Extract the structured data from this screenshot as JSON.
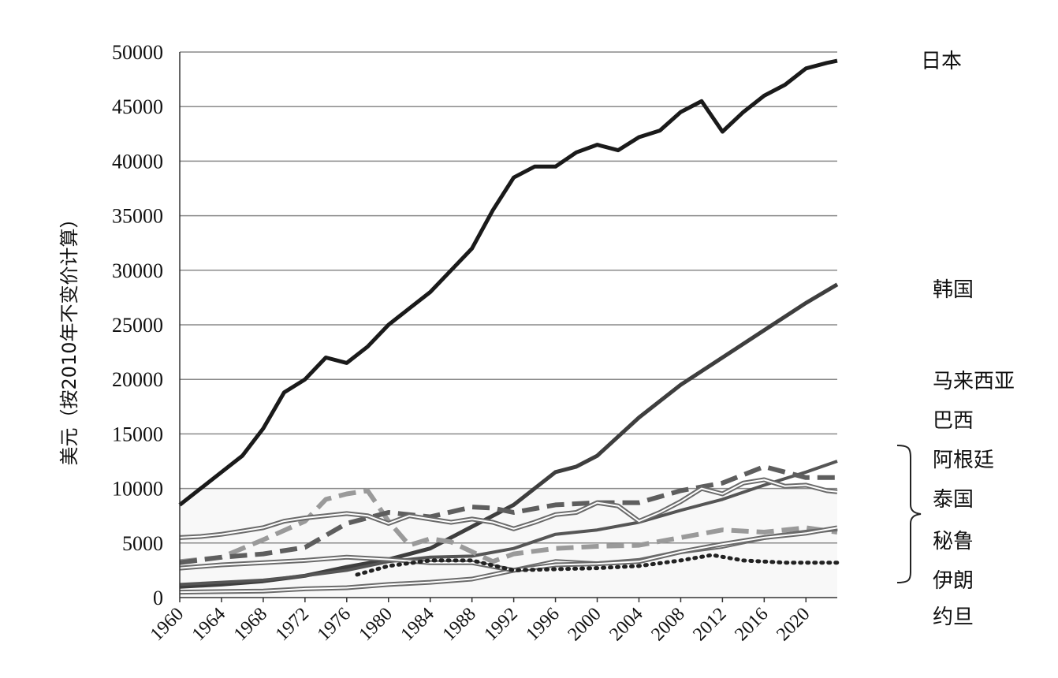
{
  "chart_data": {
    "type": "line",
    "ylabel": "美元（按2010年不变价计算）",
    "xlabel": "",
    "ylim": [
      0,
      50000
    ],
    "y_ticks": [
      0,
      5000,
      10000,
      15000,
      20000,
      25000,
      30000,
      35000,
      40000,
      45000,
      50000
    ],
    "x_ticks": [
      1960,
      1964,
      1968,
      1972,
      1976,
      1980,
      1984,
      1988,
      1992,
      1996,
      2000,
      2004,
      2008,
      2012,
      2016,
      2020
    ],
    "xlim": [
      1960,
      2023
    ],
    "grid": true,
    "legend_labels": [
      "日本",
      "韩国",
      "马来西亚",
      "巴西",
      "阿根廷",
      "泰国",
      "秘鲁",
      "伊朗",
      "约旦"
    ],
    "series": [
      {
        "name": "日本",
        "color": "#1a1a1a",
        "style": "solid-thick",
        "x": [
          1960,
          1962,
          1964,
          1966,
          1968,
          1970,
          1972,
          1974,
          1976,
          1978,
          1980,
          1982,
          1984,
          1986,
          1988,
          1990,
          1992,
          1994,
          1996,
          1998,
          2000,
          2002,
          2004,
          2006,
          2008,
          2010,
          2012,
          2014,
          2016,
          2018,
          2020,
          2022,
          2023
        ],
        "y": [
          8500,
          10000,
          11500,
          13000,
          15500,
          18800,
          20000,
          22000,
          21500,
          23000,
          25000,
          26500,
          28000,
          30000,
          32000,
          35500,
          38500,
          39500,
          39500,
          40800,
          41500,
          41000,
          42200,
          42800,
          44500,
          45500,
          42700,
          44500,
          46000,
          47000,
          48500,
          49000,
          49200
        ]
      },
      {
        "name": "韩国",
        "color": "#3e3e3e",
        "style": "solid-thick",
        "x": [
          1960,
          1964,
          1968,
          1972,
          1976,
          1980,
          1984,
          1988,
          1992,
          1996,
          1998,
          2000,
          2004,
          2008,
          2012,
          2016,
          2020,
          2023
        ],
        "y": [
          1000,
          1200,
          1500,
          2000,
          2800,
          3500,
          4500,
          6500,
          8500,
          11500,
          12000,
          13000,
          16500,
          19500,
          22000,
          24500,
          27000,
          28700
        ]
      },
      {
        "name": "马来西亚",
        "color": "#555555",
        "style": "solid",
        "x": [
          1960,
          1964,
          1968,
          1972,
          1976,
          1980,
          1984,
          1988,
          1992,
          1996,
          2000,
          2004,
          2008,
          2012,
          2016,
          2020,
          2023
        ],
        "y": [
          1200,
          1400,
          1600,
          2000,
          2500,
          3300,
          3700,
          3800,
          4500,
          5800,
          6200,
          6900,
          8000,
          9000,
          10300,
          11500,
          12500
        ]
      },
      {
        "name": "巴西",
        "color": "#9a9a9a",
        "style": "dashed-light",
        "x": [
          1960,
          1964,
          1968,
          1972,
          1974,
          1976,
          1978,
          1980,
          1982,
          1984,
          1986,
          1988,
          1990,
          1992,
          1996,
          2000,
          2004,
          2008,
          2012,
          2016,
          2020,
          2023
        ],
        "y": [
          3300,
          3700,
          5300,
          7000,
          9000,
          9500,
          9800,
          7000,
          4800,
          5400,
          5100,
          4200,
          3300,
          4000,
          4500,
          4700,
          4800,
          5500,
          6200,
          6000,
          6400,
          6000
        ]
      },
      {
        "name": "阿根廷",
        "color": "#5e5e5e",
        "style": "dashed-dark",
        "x": [
          1960,
          1964,
          1968,
          1972,
          1976,
          1980,
          1984,
          1988,
          1990,
          1992,
          1996,
          2000,
          2004,
          2008,
          2012,
          2016,
          2020,
          2023
        ],
        "y": [
          3200,
          3700,
          4000,
          4600,
          6800,
          7800,
          7400,
          8300,
          8200,
          7800,
          8500,
          8700,
          8700,
          9800,
          10500,
          12000,
          11000,
          11000
        ]
      },
      {
        "name": "泰国",
        "color": "#6a6a6a",
        "style": "double",
        "x": [
          1960,
          1964,
          1968,
          1972,
          1976,
          1980,
          1984,
          1988,
          1992,
          1996,
          2000,
          2004,
          2008,
          2012,
          2016,
          2020,
          2023
        ],
        "y": [
          500,
          550,
          600,
          800,
          900,
          1200,
          1400,
          1700,
          2500,
          3300,
          3100,
          3400,
          4200,
          4700,
          5500,
          6000,
          6300
        ]
      },
      {
        "name": "秘鲁",
        "color": "#6a6a6a",
        "style": "double",
        "x": [
          1960,
          1964,
          1968,
          1972,
          1976,
          1980,
          1984,
          1988,
          1992,
          1996,
          2000,
          2004,
          2008,
          2012,
          2016,
          2020,
          2023
        ],
        "y": [
          2700,
          3000,
          3200,
          3400,
          3700,
          3500,
          3200,
          3200,
          2500,
          3000,
          3100,
          3300,
          4200,
          4900,
          5500,
          5900,
          6400
        ]
      },
      {
        "name": "伊朗",
        "color": "#6a6a6a",
        "style": "double",
        "x": [
          1960,
          1962,
          1964,
          1966,
          1968,
          1970,
          1972,
          1974,
          1976,
          1978,
          1980,
          1982,
          1984,
          1986,
          1988,
          1990,
          1992,
          1994,
          1996,
          1998,
          2000,
          2002,
          2004,
          2006,
          2008,
          2010,
          2012,
          2014,
          2016,
          2018,
          2020,
          2022,
          2023
        ],
        "y": [
          5500,
          5600,
          5800,
          6100,
          6400,
          7000,
          7300,
          7500,
          7700,
          7500,
          6800,
          7500,
          7200,
          6900,
          7200,
          6900,
          6300,
          6900,
          7600,
          7800,
          8700,
          8400,
          7000,
          7800,
          8800,
          10000,
          9500,
          10500,
          10800,
          10200,
          10300,
          9800,
          9700
        ]
      },
      {
        "name": "约旦",
        "color": "#222222",
        "style": "dotted",
        "x": [
          1977,
          1980,
          1984,
          1988,
          1992,
          1996,
          2000,
          2004,
          2008,
          2011,
          2014,
          2018,
          2023
        ],
        "y": [
          2100,
          2900,
          3400,
          3400,
          2500,
          2600,
          2700,
          2900,
          3400,
          3900,
          3400,
          3200,
          3200
        ]
      }
    ]
  }
}
